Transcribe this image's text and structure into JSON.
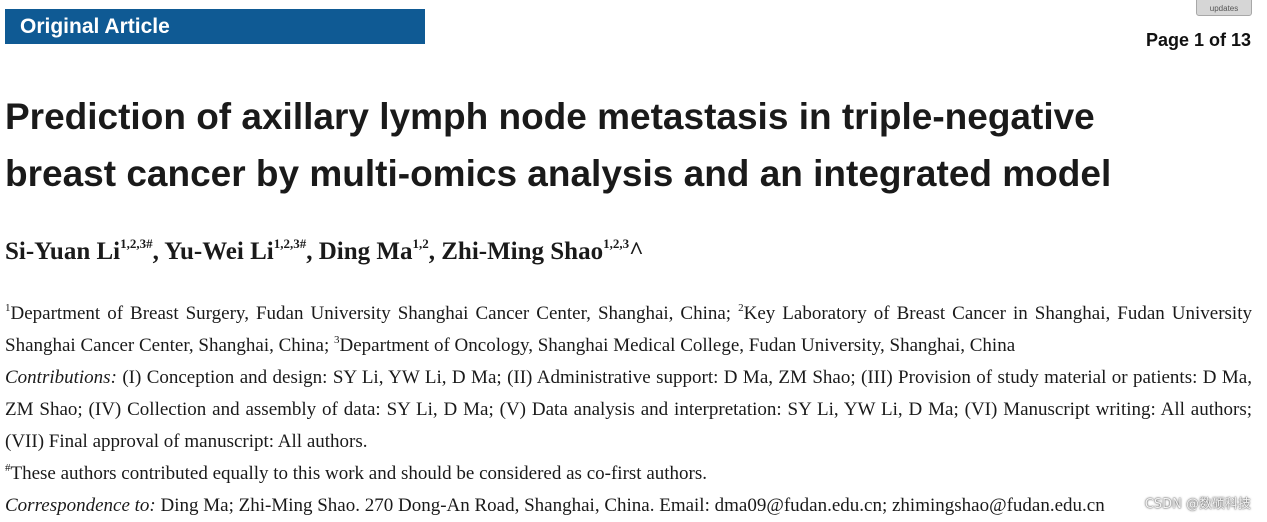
{
  "header": {
    "banner_label": "Original Article",
    "updates_badge": "updates",
    "page_indicator": "Page 1 of 13"
  },
  "article": {
    "title_line1": "Prediction of axillary lymph node metastasis in triple-negative",
    "title_line2": "breast cancer by multi-omics analysis and an integrated model",
    "authors": [
      {
        "name": "Si-Yuan Li",
        "sup": "1,2,3#"
      },
      {
        "name": "Yu-Wei Li",
        "sup": "1,2,3#"
      },
      {
        "name": "Ding Ma",
        "sup": "1,2"
      },
      {
        "name": "Zhi-Ming Shao",
        "sup": "1,2,3"
      }
    ],
    "author_separator": ", ",
    "author_caret": "^",
    "affiliations": [
      {
        "num": "1",
        "text": "Department of Breast Surgery, Fudan University Shanghai Cancer Center, Shanghai, China; "
      },
      {
        "num": "2",
        "text": "Key Laboratory of Breast Cancer in Shanghai, Fudan University Shanghai Cancer Center, Shanghai, China; "
      },
      {
        "num": "3",
        "text": "Department of Oncology, Shanghai Medical College, Fudan University, Shanghai, China"
      }
    ],
    "contributions_label": "Contributions:",
    "contributions_text": " (I) Conception and design: SY Li, YW Li, D Ma; (II) Administrative support: D Ma, ZM Shao; (III) Provision of study material or patients: D Ma, ZM Shao; (IV) Collection and assembly of data: SY Li, D Ma; (V) Data analysis and interpretation: SY Li, YW Li, D Ma; (VI) Manuscript writing: All authors; (VII) Final approval of manuscript: All authors.",
    "equal_mark": "#",
    "equal_text": "These authors contributed equally to this work and should be considered as co-first authors.",
    "correspondence_label": "Correspondence to:",
    "correspondence_text": " Ding Ma; Zhi-Ming Shao. 270 Dong-An Road, Shanghai, China. Email: dma09@fudan.edu.cn; zhimingshao@fudan.edu.cn"
  },
  "watermark": "CSDN @数硕科技",
  "colors": {
    "banner_background": "#0f5a94",
    "banner_text": "#ffffff",
    "body_text": "#1a1a1a"
  }
}
